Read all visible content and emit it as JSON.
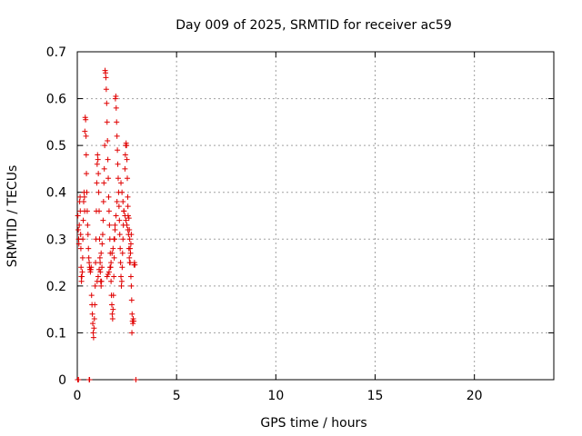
{
  "chart_data": {
    "type": "scatter",
    "title": "Day 009 of 2025, SRMTID for receiver ac59",
    "xlabel": "GPS time / hours",
    "ylabel": "SRMTID / TECUs",
    "xlim": [
      0,
      24
    ],
    "ylim": [
      0,
      0.7
    ],
    "x_ticks": [
      0,
      5,
      10,
      15,
      20
    ],
    "x_tick_labels": [
      "0",
      "5",
      "10",
      "15",
      "20"
    ],
    "y_ticks": [
      0,
      0.1,
      0.2,
      0.3,
      0.4,
      0.5,
      0.6,
      0.7
    ],
    "y_tick_labels": [
      "0",
      "0.1",
      "0.2",
      "0.3",
      "0.4",
      "0.5",
      "0.6",
      "0.7"
    ],
    "grid": true,
    "marker": "+",
    "marker_color": "#e00000",
    "series": [
      {
        "name": "SRMTID",
        "points": [
          [
            0.02,
            0.0
          ],
          [
            0.06,
            0.0
          ],
          [
            0.6,
            0.0
          ],
          [
            0.62,
            0.0
          ],
          [
            2.95,
            0.0
          ],
          [
            0.03,
            0.35
          ],
          [
            0.05,
            0.32
          ],
          [
            0.07,
            0.3
          ],
          [
            0.08,
            0.29
          ],
          [
            0.1,
            0.33
          ],
          [
            0.12,
            0.38
          ],
          [
            0.14,
            0.39
          ],
          [
            0.15,
            0.36
          ],
          [
            0.17,
            0.31
          ],
          [
            0.18,
            0.28
          ],
          [
            0.19,
            0.24
          ],
          [
            0.2,
            0.22
          ],
          [
            0.21,
            0.21
          ],
          [
            0.23,
            0.22
          ],
          [
            0.25,
            0.23
          ],
          [
            0.27,
            0.26
          ],
          [
            0.28,
            0.3
          ],
          [
            0.3,
            0.34
          ],
          [
            0.32,
            0.38
          ],
          [
            0.34,
            0.4
          ],
          [
            0.36,
            0.39
          ],
          [
            0.37,
            0.36
          ],
          [
            0.38,
            0.53
          ],
          [
            0.4,
            0.56
          ],
          [
            0.42,
            0.555
          ],
          [
            0.44,
            0.52
          ],
          [
            0.45,
            0.48
          ],
          [
            0.46,
            0.44
          ],
          [
            0.48,
            0.4
          ],
          [
            0.5,
            0.36
          ],
          [
            0.52,
            0.33
          ],
          [
            0.54,
            0.31
          ],
          [
            0.56,
            0.28
          ],
          [
            0.58,
            0.26
          ],
          [
            0.6,
            0.25
          ],
          [
            0.62,
            0.24
          ],
          [
            0.64,
            0.235
          ],
          [
            0.66,
            0.23
          ],
          [
            0.68,
            0.235
          ],
          [
            0.7,
            0.24
          ],
          [
            0.72,
            0.18
          ],
          [
            0.74,
            0.16
          ],
          [
            0.76,
            0.14
          ],
          [
            0.78,
            0.12
          ],
          [
            0.8,
            0.1
          ],
          [
            0.82,
            0.09
          ],
          [
            0.84,
            0.11
          ],
          [
            0.86,
            0.13
          ],
          [
            0.88,
            0.16
          ],
          [
            0.9,
            0.2
          ],
          [
            0.92,
            0.25
          ],
          [
            0.94,
            0.3
          ],
          [
            0.96,
            0.36
          ],
          [
            0.98,
            0.42
          ],
          [
            1.0,
            0.46
          ],
          [
            1.02,
            0.48
          ],
          [
            1.04,
            0.47
          ],
          [
            1.06,
            0.44
          ],
          [
            1.08,
            0.4
          ],
          [
            1.1,
            0.36
          ],
          [
            1.12,
            0.3
          ],
          [
            1.14,
            0.26
          ],
          [
            1.16,
            0.23
          ],
          [
            1.18,
            0.21
          ],
          [
            1.2,
            0.2
          ],
          [
            1.22,
            0.21
          ],
          [
            1.24,
            0.24
          ],
          [
            1.0,
            0.21
          ],
          [
            1.05,
            0.22
          ],
          [
            1.1,
            0.235
          ],
          [
            1.15,
            0.25
          ],
          [
            1.2,
            0.27
          ],
          [
            1.25,
            0.29
          ],
          [
            1.28,
            0.31
          ],
          [
            1.3,
            0.34
          ],
          [
            1.32,
            0.38
          ],
          [
            1.34,
            0.42
          ],
          [
            1.36,
            0.45
          ],
          [
            1.38,
            0.5
          ],
          [
            1.4,
            0.66
          ],
          [
            1.42,
            0.655
          ],
          [
            1.44,
            0.645
          ],
          [
            1.46,
            0.62
          ],
          [
            1.48,
            0.59
          ],
          [
            1.5,
            0.55
          ],
          [
            1.52,
            0.51
          ],
          [
            1.54,
            0.47
          ],
          [
            1.56,
            0.43
          ],
          [
            1.58,
            0.39
          ],
          [
            1.6,
            0.36
          ],
          [
            1.62,
            0.33
          ],
          [
            1.64,
            0.3
          ],
          [
            1.66,
            0.27
          ],
          [
            1.68,
            0.24
          ],
          [
            1.7,
            0.21
          ],
          [
            1.72,
            0.18
          ],
          [
            1.74,
            0.16
          ],
          [
            1.76,
            0.14
          ],
          [
            1.78,
            0.13
          ],
          [
            1.8,
            0.15
          ],
          [
            1.82,
            0.18
          ],
          [
            1.84,
            0.22
          ],
          [
            1.86,
            0.26
          ],
          [
            1.88,
            0.3
          ],
          [
            1.9,
            0.33
          ],
          [
            1.5,
            0.22
          ],
          [
            1.55,
            0.225
          ],
          [
            1.6,
            0.23
          ],
          [
            1.65,
            0.24
          ],
          [
            1.7,
            0.25
          ],
          [
            1.75,
            0.27
          ],
          [
            1.8,
            0.28
          ],
          [
            1.85,
            0.3
          ],
          [
            1.9,
            0.32
          ],
          [
            1.95,
            0.35
          ],
          [
            2.0,
            0.38
          ],
          [
            1.92,
            0.6
          ],
          [
            1.94,
            0.605
          ],
          [
            1.96,
            0.58
          ],
          [
            1.98,
            0.55
          ],
          [
            2.0,
            0.52
          ],
          [
            2.02,
            0.49
          ],
          [
            2.04,
            0.46
          ],
          [
            2.06,
            0.43
          ],
          [
            2.08,
            0.4
          ],
          [
            2.1,
            0.37
          ],
          [
            2.12,
            0.34
          ],
          [
            2.14,
            0.31
          ],
          [
            2.16,
            0.28
          ],
          [
            2.18,
            0.25
          ],
          [
            2.2,
            0.22
          ],
          [
            2.22,
            0.2
          ],
          [
            2.24,
            0.21
          ],
          [
            2.26,
            0.24
          ],
          [
            2.28,
            0.27
          ],
          [
            2.3,
            0.3
          ],
          [
            2.32,
            0.33
          ],
          [
            2.34,
            0.36
          ],
          [
            2.2,
            0.42
          ],
          [
            2.25,
            0.4
          ],
          [
            2.3,
            0.38
          ],
          [
            2.35,
            0.36
          ],
          [
            2.4,
            0.35
          ],
          [
            2.45,
            0.34
          ],
          [
            2.5,
            0.33
          ],
          [
            2.55,
            0.32
          ],
          [
            2.4,
            0.45
          ],
          [
            2.42,
            0.48
          ],
          [
            2.44,
            0.5
          ],
          [
            2.46,
            0.505
          ],
          [
            2.48,
            0.5
          ],
          [
            2.5,
            0.47
          ],
          [
            2.52,
            0.43
          ],
          [
            2.54,
            0.39
          ],
          [
            2.56,
            0.35
          ],
          [
            2.58,
            0.31
          ],
          [
            2.6,
            0.28
          ],
          [
            2.62,
            0.26
          ],
          [
            2.64,
            0.25
          ],
          [
            2.66,
            0.25
          ],
          [
            2.55,
            0.37
          ],
          [
            2.6,
            0.345
          ],
          [
            2.62,
            0.32
          ],
          [
            2.64,
            0.3
          ],
          [
            2.66,
            0.28
          ],
          [
            2.68,
            0.27
          ],
          [
            2.7,
            0.29
          ],
          [
            2.72,
            0.31
          ],
          [
            2.7,
            0.22
          ],
          [
            2.72,
            0.2
          ],
          [
            2.74,
            0.17
          ],
          [
            2.76,
            0.14
          ],
          [
            2.78,
            0.125
          ],
          [
            2.8,
            0.12
          ],
          [
            2.82,
            0.13
          ],
          [
            2.84,
            0.125
          ],
          [
            2.75,
            0.1
          ],
          [
            2.86,
            0.245
          ],
          [
            2.88,
            0.25
          ],
          [
            2.9,
            0.245
          ]
        ]
      }
    ]
  }
}
